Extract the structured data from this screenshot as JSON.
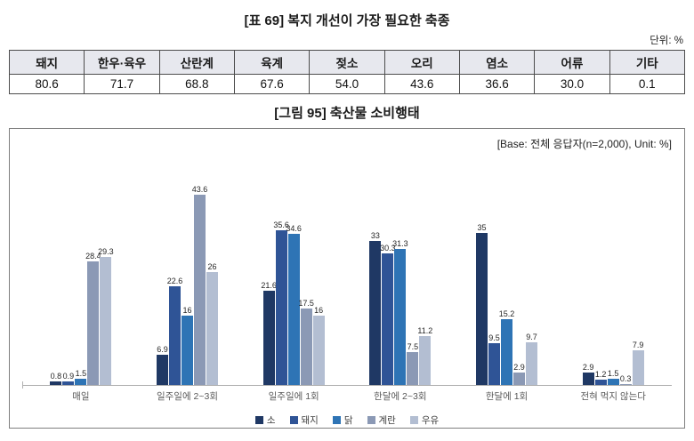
{
  "chart_data": [
    {
      "type": "table",
      "title": "[표 69] 복지 개선이 가장 필요한 축종",
      "unit_label": "단위: %",
      "columns": [
        "돼지",
        "한우·육우",
        "산란계",
        "육계",
        "젖소",
        "오리",
        "염소",
        "어류",
        "기타"
      ],
      "values": [
        "80.6",
        "71.7",
        "68.8",
        "67.6",
        "54.0",
        "43.6",
        "36.6",
        "30.0",
        "0.1"
      ]
    },
    {
      "type": "bar",
      "title": "[그림 95] 축산물 소비행태",
      "base_label": "[Base: 전체 응답자(n=2,000), Unit: %]",
      "categories": [
        "매일",
        "일주일에 2~3회",
        "일주일에 1회",
        "한달에 2~3회",
        "한달에 1회",
        "전혀 먹지 않는다"
      ],
      "series": [
        {
          "name": "소",
          "color": "#1f3864",
          "values": [
            0.8,
            6.9,
            21.6,
            33,
            35,
            2.9
          ]
        },
        {
          "name": "돼지",
          "color": "#2f5496",
          "values": [
            0.9,
            22.6,
            35.6,
            30.3,
            9.5,
            1.2
          ]
        },
        {
          "name": "닭",
          "color": "#2e74b5",
          "values": [
            1.5,
            16,
            34.6,
            31.3,
            15.2,
            1.5
          ]
        },
        {
          "name": "계란",
          "color": "#8b99b5",
          "values": [
            28.4,
            43.6,
            17.5,
            7.5,
            2.9,
            0.3
          ]
        },
        {
          "name": "우유",
          "color": "#b3bed2",
          "values": [
            29.3,
            26,
            16,
            11.2,
            9.7,
            7.9
          ]
        }
      ],
      "ylim": [
        0,
        45
      ],
      "grid": false,
      "legend_position": "bottom",
      "value_labels": true
    }
  ]
}
